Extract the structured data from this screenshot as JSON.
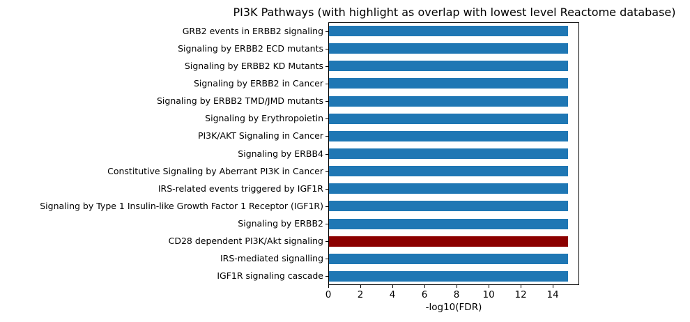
{
  "title": "PI3K Pathways (with highlight as overlap with lowest level Reactome database)",
  "chart_data": {
    "type": "bar",
    "orientation": "horizontal",
    "title": "PI3K Pathways (with highlight as overlap with lowest level Reactome database)",
    "xlabel": "-log10(FDR)",
    "ylabel": "",
    "categories": [
      "GRB2 events in ERBB2 signaling",
      "Signaling by ERBB2 ECD mutants",
      "Signaling by ERBB2 KD Mutants",
      "Signaling by ERBB2 in Cancer",
      "Signaling by ERBB2 TMD/JMD mutants",
      "Signaling by Erythropoietin",
      "PI3K/AKT Signaling in Cancer",
      "Signaling by ERBB4",
      "Constitutive Signaling by Aberrant PI3K in Cancer",
      "IRS-related events triggered by IGF1R",
      "Signaling by Type 1 Insulin-like Growth Factor 1 Receptor (IGF1R)",
      "Signaling by ERBB2",
      "CD28 dependent PI3K/Akt signaling",
      "IRS-mediated signalling",
      "IGF1R signaling cascade"
    ],
    "values": [
      14.9,
      14.9,
      14.9,
      14.9,
      14.9,
      14.9,
      14.9,
      14.9,
      14.9,
      14.9,
      14.9,
      14.9,
      14.9,
      14.9,
      14.9
    ],
    "bar_colors": [
      "#1f77b4",
      "#1f77b4",
      "#1f77b4",
      "#1f77b4",
      "#1f77b4",
      "#1f77b4",
      "#1f77b4",
      "#1f77b4",
      "#1f77b4",
      "#1f77b4",
      "#1f77b4",
      "#1f77b4",
      "#8b0000",
      "#1f77b4",
      "#1f77b4"
    ],
    "default_bar_color": "#1f77b4",
    "highlight_color": "#8b0000",
    "highlight_category": "CD28 dependent PI3K/Akt signaling",
    "xlim": [
      0,
      15.645
    ],
    "xticks": [
      0,
      2,
      4,
      6,
      8,
      10,
      12,
      14
    ],
    "grid": false,
    "legend": false
  }
}
